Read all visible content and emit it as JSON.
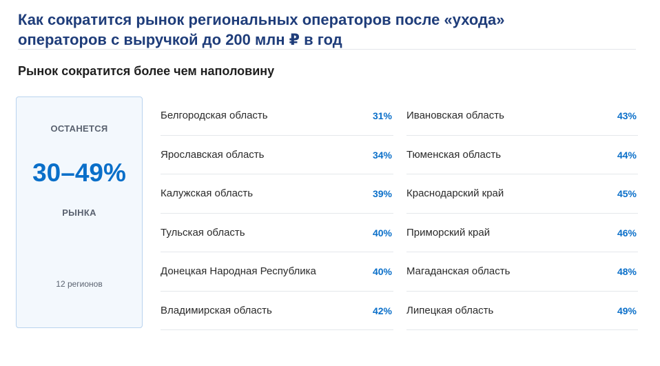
{
  "header": {
    "title_line1": "Как сократится рынок региональных операторов после «ухода»",
    "title_line2": "операторов с выручкой до 200 млн ₽ в год",
    "subtitle": "Рынок сократится более чем наполовину"
  },
  "summary": {
    "top_label": "ОСТАНЕТСЯ",
    "value": "30–49%",
    "bottom_label": "РЫНКА",
    "count": "12 регионов"
  },
  "regions_left": [
    {
      "name": "Белгородская область",
      "pct": "31%"
    },
    {
      "name": "Ярославская область",
      "pct": "34%"
    },
    {
      "name": "Калужская область",
      "pct": "39%"
    },
    {
      "name": "Тульская область",
      "pct": "40%"
    },
    {
      "name": "Донецкая Народная Республика",
      "pct": "40%"
    },
    {
      "name": "Владимирская область",
      "pct": "42%"
    }
  ],
  "regions_right": [
    {
      "name": "Ивановская область",
      "pct": "43%"
    },
    {
      "name": "Тюменская область",
      "pct": "44%"
    },
    {
      "name": "Краснодарский край",
      "pct": "45%"
    },
    {
      "name": "Приморский край",
      "pct": "46%"
    },
    {
      "name": "Магаданская область",
      "pct": "48%"
    },
    {
      "name": "Липецкая область",
      "pct": "49%"
    }
  ],
  "colors": {
    "title": "#1f3d7a",
    "accent": "#0a6fc9",
    "card_border": "#b9d3ee",
    "card_background": "#f3f8fd"
  }
}
